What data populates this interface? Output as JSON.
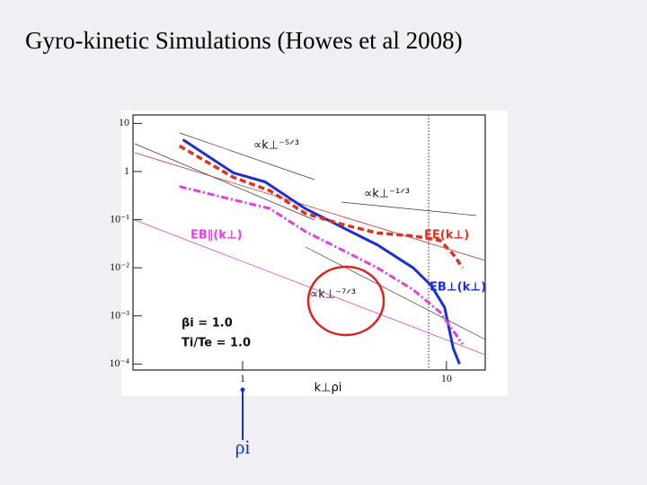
{
  "title": "Gyro-kinetic Simulations (Howes et al 2008)",
  "marker_label": "ρi",
  "chart_data": {
    "type": "line",
    "x_label": "k⊥ρi",
    "xscale": "log",
    "yscale": "log",
    "xlim": [
      0.29,
      15.5
    ],
    "ylim": [
      7.5e-05,
      15
    ],
    "xticks": [
      1,
      10
    ],
    "yticks": [
      10,
      1,
      {
        "value": 0.1,
        "label": "10⁻¹"
      },
      {
        "value": 0.01,
        "label": "10⁻²"
      },
      {
        "value": 0.001,
        "label": "10⁻³"
      },
      {
        "value": 0.0001,
        "label": "10⁻⁴"
      }
    ],
    "series": [
      {
        "name": "EB⊥(k⊥)",
        "color": "#1c2fd0",
        "style": "solid",
        "x": [
          0.51,
          0.9,
          1.29,
          2.03,
          3.05,
          4.58,
          6.87,
          8.41,
          9.8,
          10.8,
          11.6
        ],
        "values": [
          4.6,
          0.94,
          0.61,
          0.17,
          0.071,
          0.03,
          0.01,
          0.0043,
          0.0015,
          0.00021,
          0.0001
        ]
      },
      {
        "name": "EE(k⊥)",
        "color": "#e0301e",
        "style": "dashed",
        "x": [
          0.49,
          0.9,
          1.36,
          2.03,
          3.05,
          4.58,
          6.87,
          9.3,
          10.8,
          12.0
        ],
        "values": [
          3.4,
          0.76,
          0.4,
          0.135,
          0.081,
          0.053,
          0.046,
          0.037,
          0.019,
          0.01
        ]
      },
      {
        "name": "EB∥(k⊥)",
        "color": "#e040e0",
        "style": "dashdot",
        "x": [
          0.49,
          0.9,
          1.36,
          2.03,
          3.05,
          4.58,
          6.87,
          9.3,
          12.0
        ],
        "values": [
          0.49,
          0.26,
          0.17,
          0.057,
          0.024,
          0.01,
          0.0035,
          0.0012,
          0.00026
        ]
      }
    ],
    "annotations": [
      "∝k⊥⁻⁵ᐟ³",
      "∝k⊥⁻¹ᐟ³",
      "∝k⊥⁻⁷ᐟ³",
      "βi = 1.0",
      "Ti/Te = 1.0"
    ]
  }
}
